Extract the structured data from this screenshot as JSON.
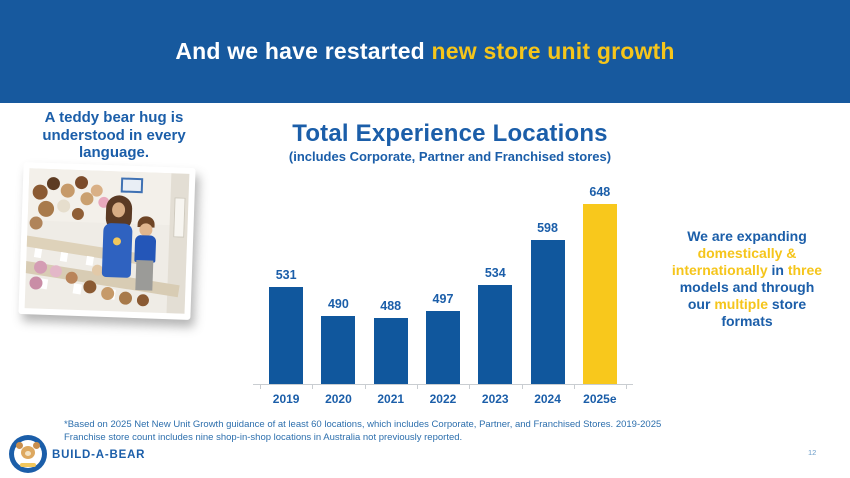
{
  "colors": {
    "header_bg": "#17599E",
    "blue_text": "#1B5EA9",
    "yellow": "#F5C51B",
    "bar_blue": "#10579D",
    "bar_yellow": "#F8C81C",
    "axis_gray": "#C9CDD1",
    "footnote_blue": "#2D6FAD"
  },
  "header": {
    "segments": [
      {
        "text": "And we have restarted ",
        "color": "white"
      },
      {
        "text": "new store unit growth",
        "color": "yellow"
      }
    ]
  },
  "left_panel": {
    "tagline_lines": [
      "A teddy bear hug is",
      "understood in every",
      "language."
    ]
  },
  "chart_data": {
    "type": "bar",
    "title": "Total Experience Locations",
    "subtitle": "(includes Corporate, Partner and Franchised stores)",
    "categories": [
      "2019",
      "2020",
      "2021",
      "2022",
      "2023",
      "2024",
      "2025e"
    ],
    "values": [
      531,
      490,
      488,
      497,
      534,
      598,
      648
    ],
    "bar_colors": [
      "blue",
      "blue",
      "blue",
      "blue",
      "blue",
      "blue",
      "yellow"
    ],
    "xlabel": "",
    "ylabel": "",
    "ylim": [
      395,
      660
    ],
    "grid": false,
    "data_labels": true,
    "legend": "none"
  },
  "right_panel": {
    "lines": [
      [
        {
          "text": "We are expanding",
          "color": "blue"
        }
      ],
      [
        {
          "text": "domestically &",
          "color": "yellow"
        }
      ],
      [
        {
          "text": "internationally",
          "color": "yellow"
        },
        {
          "text": " in ",
          "color": "blue"
        },
        {
          "text": "three",
          "color": "yellow"
        }
      ],
      [
        {
          "text": "models and through",
          "color": "blue"
        }
      ],
      [
        {
          "text": "our ",
          "color": "blue"
        },
        {
          "text": "multiple",
          "color": "yellow"
        },
        {
          "text": " store",
          "color": "blue"
        }
      ],
      [
        {
          "text": "formats",
          "color": "blue"
        }
      ]
    ]
  },
  "footer": {
    "footnote_lines": [
      "*Based on 2025 Net New Unit Growth guidance of at least 60 locations, which includes Corporate, Partner, and Franchised Stores. 2019-2025",
      "Franchise store count includes nine shop-in-shop locations in Australia not previously reported."
    ],
    "brand_name": "BUILD-A-BEAR",
    "page_number": "12"
  }
}
